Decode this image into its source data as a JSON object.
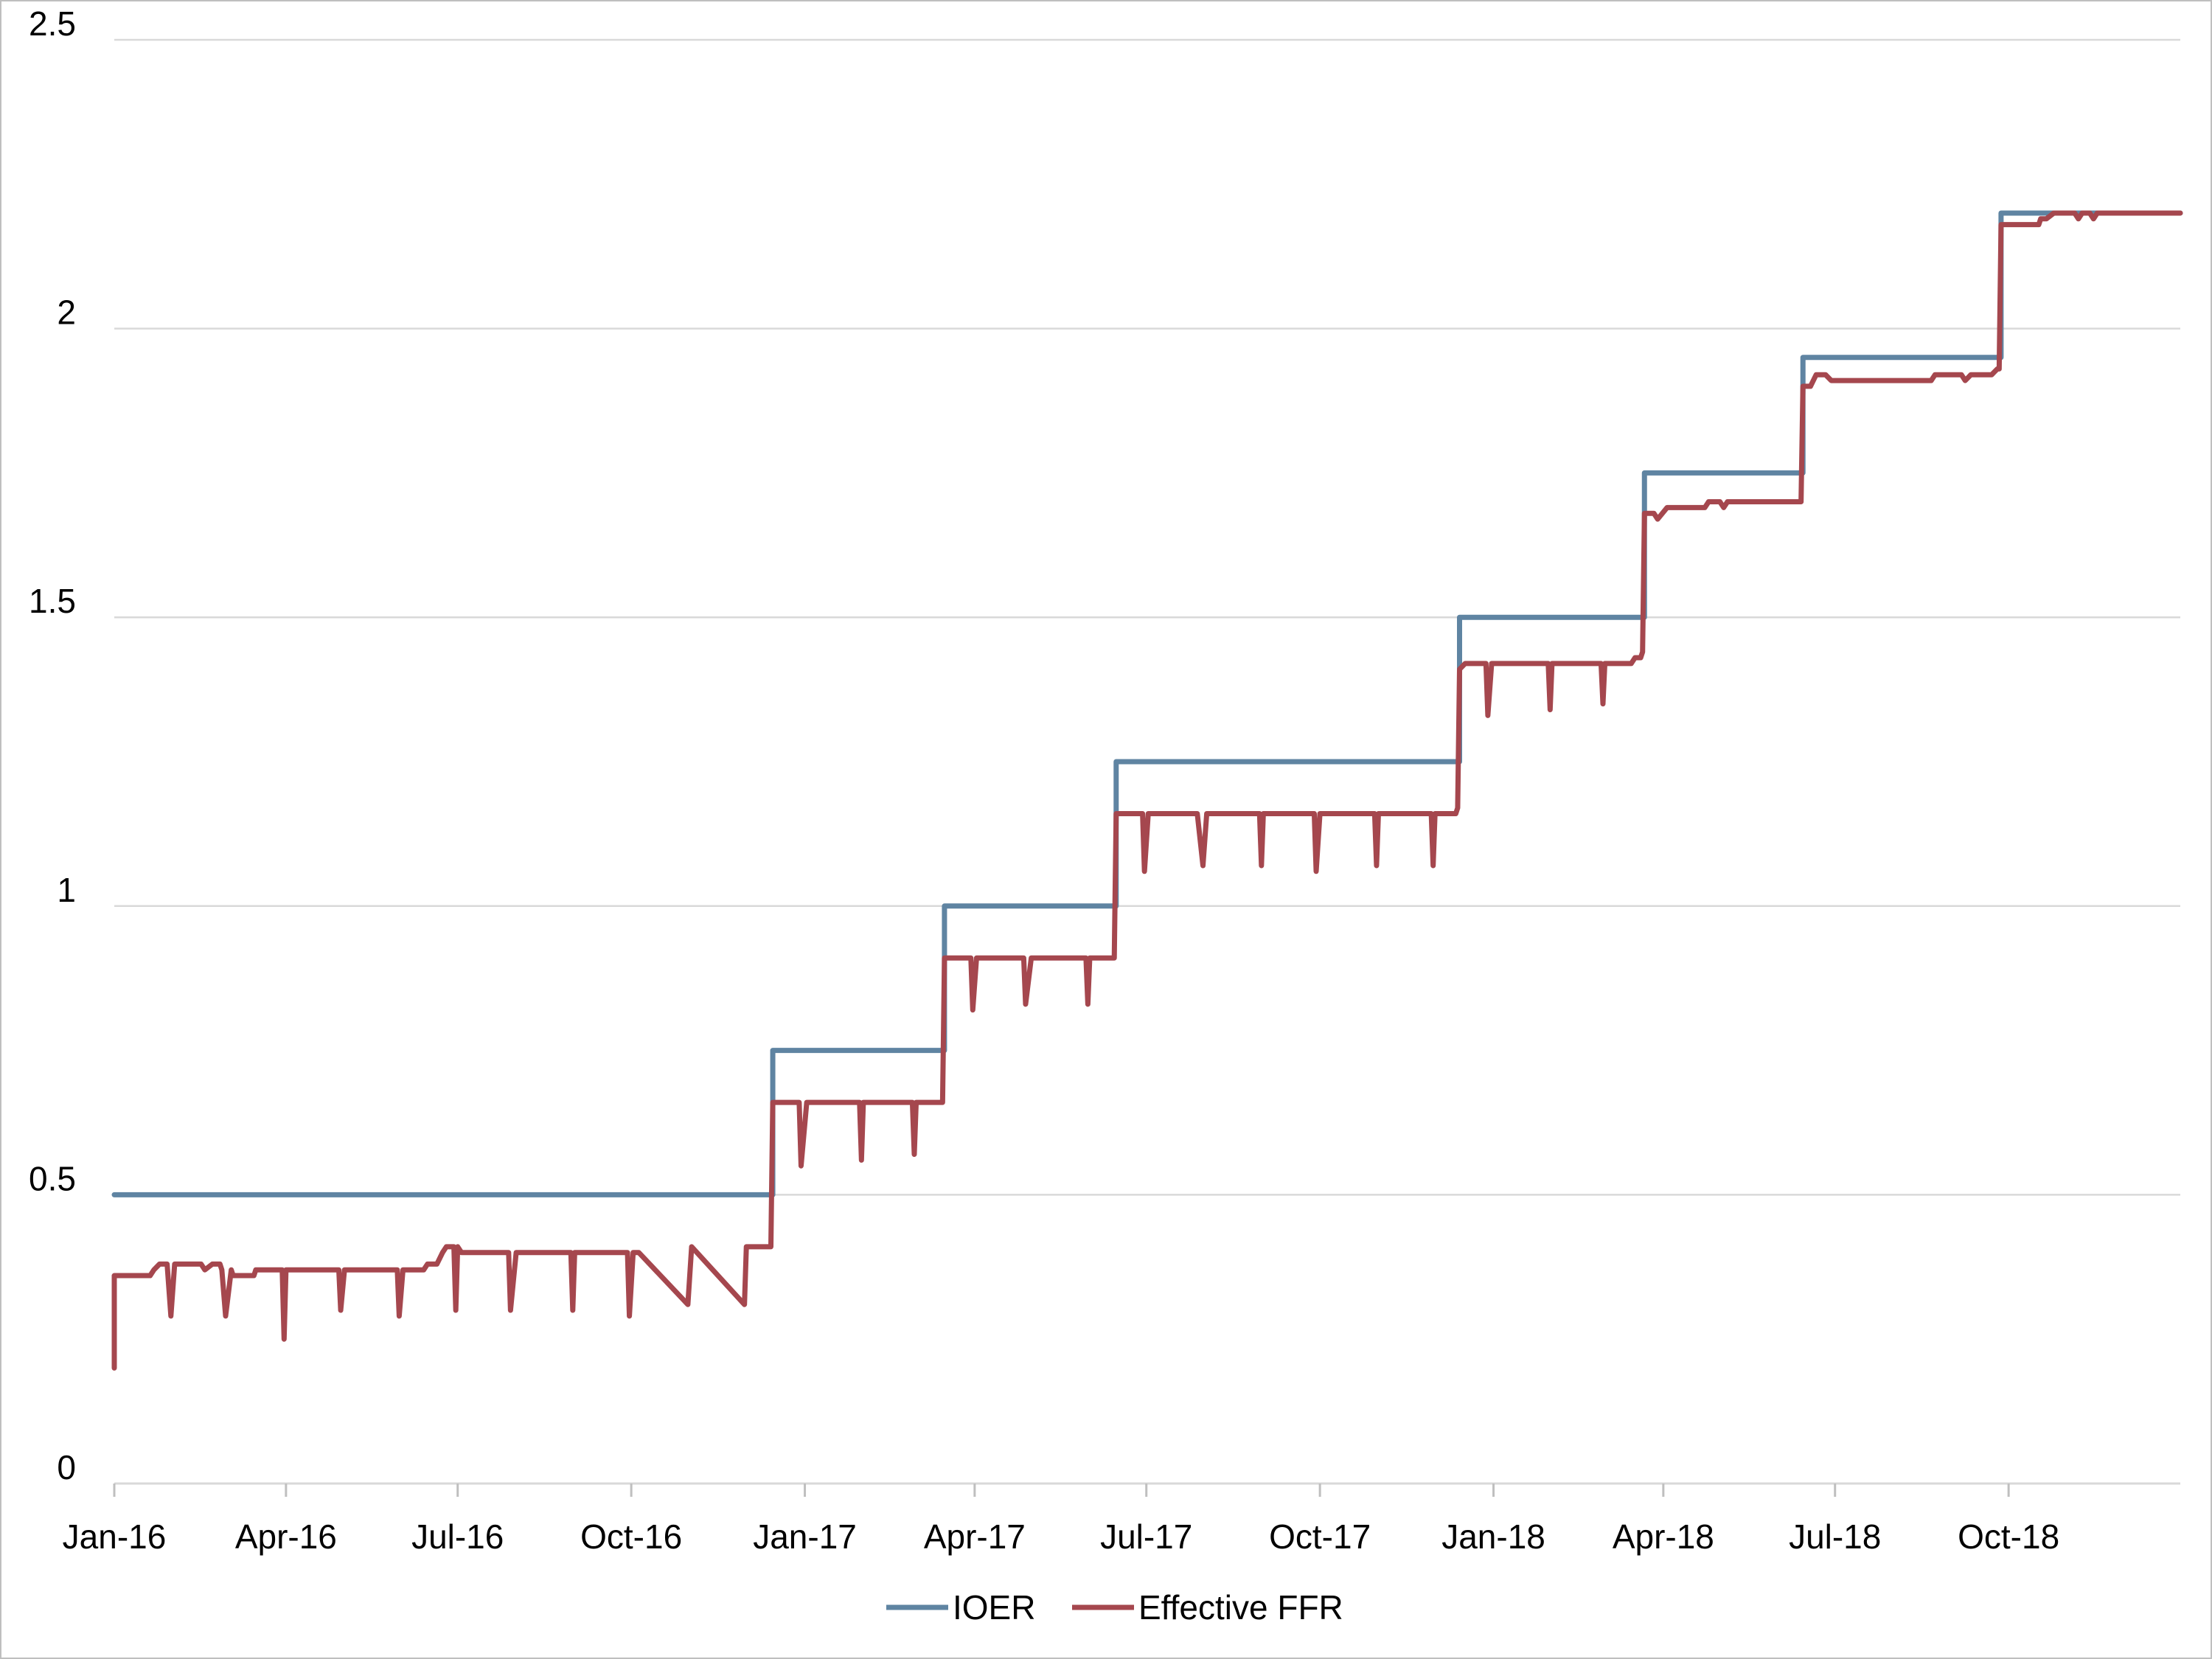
{
  "chart_data": {
    "type": "line",
    "title": "",
    "xlabel": "",
    "ylabel": "",
    "ylim": [
      0,
      2.5
    ],
    "yticks": [
      "0",
      "0.5",
      "1",
      "1.5",
      "2",
      "2.5"
    ],
    "xlim": [
      "2016-01-01",
      "2018-12-31"
    ],
    "xticks": [
      {
        "date": "2016-01-01",
        "label": "Jan-16"
      },
      {
        "date": "2016-04-01",
        "label": "Apr-16"
      },
      {
        "date": "2016-07-01",
        "label": "Jul-16"
      },
      {
        "date": "2016-10-01",
        "label": "Oct-16"
      },
      {
        "date": "2017-01-01",
        "label": "Jan-17"
      },
      {
        "date": "2017-04-01",
        "label": "Apr-17"
      },
      {
        "date": "2017-07-01",
        "label": "Jul-17"
      },
      {
        "date": "2017-10-01",
        "label": "Oct-17"
      },
      {
        "date": "2018-01-01",
        "label": "Jan-18"
      },
      {
        "date": "2018-04-01",
        "label": "Apr-18"
      },
      {
        "date": "2018-07-01",
        "label": "Jul-18"
      },
      {
        "date": "2018-10-01",
        "label": "Oct-18"
      }
    ],
    "grid": true,
    "legend_position": "bottom",
    "series": [
      {
        "name": "IOER",
        "color": "#5f84a2",
        "points": [
          [
            "2016-01-01",
            0.5
          ],
          [
            "2016-12-15",
            0.5
          ],
          [
            "2016-12-15",
            0.75
          ],
          [
            "2017-03-16",
            0.75
          ],
          [
            "2017-03-16",
            1.0
          ],
          [
            "2017-06-15",
            1.0
          ],
          [
            "2017-06-15",
            1.25
          ],
          [
            "2017-12-14",
            1.25
          ],
          [
            "2017-12-14",
            1.5
          ],
          [
            "2018-03-22",
            1.5
          ],
          [
            "2018-03-22",
            1.75
          ],
          [
            "2018-06-14",
            1.75
          ],
          [
            "2018-06-14",
            1.95
          ],
          [
            "2018-09-27",
            1.95
          ],
          [
            "2018-09-27",
            2.2
          ],
          [
            "2018-12-31",
            2.2
          ]
        ]
      },
      {
        "name": "Effective FFR",
        "color": "#a5474e",
        "points": [
          [
            "2016-01-01",
            0.2
          ],
          [
            "2016-01-01",
            0.36
          ],
          [
            "2016-01-20",
            0.36
          ],
          [
            "2016-01-22",
            0.37
          ],
          [
            "2016-01-25",
            0.38
          ],
          [
            "2016-01-29",
            0.38
          ],
          [
            "2016-01-31",
            0.29
          ],
          [
            "2016-02-02",
            0.38
          ],
          [
            "2016-02-16",
            0.38
          ],
          [
            "2016-02-18",
            0.37
          ],
          [
            "2016-02-22",
            0.38
          ],
          [
            "2016-02-26",
            0.38
          ],
          [
            "2016-02-27",
            0.37
          ],
          [
            "2016-02-29",
            0.29
          ],
          [
            "2016-03-03",
            0.37
          ],
          [
            "2016-03-04",
            0.36
          ],
          [
            "2016-03-15",
            0.36
          ],
          [
            "2016-03-16",
            0.37
          ],
          [
            "2016-03-30",
            0.37
          ],
          [
            "2016-03-31",
            0.25
          ],
          [
            "2016-04-01",
            0.37
          ],
          [
            "2016-04-29",
            0.37
          ],
          [
            "2016-04-30",
            0.3
          ],
          [
            "2016-05-02",
            0.37
          ],
          [
            "2016-05-30",
            0.37
          ],
          [
            "2016-05-31",
            0.29
          ],
          [
            "2016-06-02",
            0.37
          ],
          [
            "2016-06-13",
            0.37
          ],
          [
            "2016-06-15",
            0.38
          ],
          [
            "2016-06-20",
            0.38
          ],
          [
            "2016-06-23",
            0.4
          ],
          [
            "2016-06-25",
            0.41
          ],
          [
            "2016-06-29",
            0.41
          ],
          [
            "2016-06-30",
            0.3
          ],
          [
            "2016-07-01",
            0.41
          ],
          [
            "2016-07-03",
            0.4
          ],
          [
            "2016-07-28",
            0.4
          ],
          [
            "2016-07-29",
            0.3
          ],
          [
            "2016-08-01",
            0.4
          ],
          [
            "2016-08-30",
            0.4
          ],
          [
            "2016-08-31",
            0.3
          ],
          [
            "2016-09-01",
            0.4
          ],
          [
            "2016-09-29",
            0.4
          ],
          [
            "2016-09-30",
            0.29
          ],
          [
            "2016-10-02",
            0.4
          ],
          [
            "2016-10-05",
            0.4
          ],
          [
            "2016-10-31",
            0.31
          ],
          [
            "2016-11-02",
            0.41
          ],
          [
            "2016-11-30",
            0.31
          ],
          [
            "2016-12-01",
            0.41
          ],
          [
            "2016-12-14",
            0.41
          ],
          [
            "2016-12-15",
            0.66
          ],
          [
            "2016-12-29",
            0.66
          ],
          [
            "2016-12-30",
            0.55
          ],
          [
            "2017-01-02",
            0.66
          ],
          [
            "2017-01-30",
            0.66
          ],
          [
            "2017-01-31",
            0.56
          ],
          [
            "2017-02-01",
            0.66
          ],
          [
            "2017-02-27",
            0.66
          ],
          [
            "2017-02-28",
            0.57
          ],
          [
            "2017-03-01",
            0.66
          ],
          [
            "2017-03-15",
            0.66
          ],
          [
            "2017-03-16",
            0.91
          ],
          [
            "2017-03-30",
            0.91
          ],
          [
            "2017-03-31",
            0.82
          ],
          [
            "2017-04-02",
            0.91
          ],
          [
            "2017-04-27",
            0.91
          ],
          [
            "2017-04-28",
            0.83
          ],
          [
            "2017-05-01",
            0.91
          ],
          [
            "2017-05-30",
            0.91
          ],
          [
            "2017-05-31",
            0.83
          ],
          [
            "2017-06-01",
            0.91
          ],
          [
            "2017-06-14",
            0.91
          ],
          [
            "2017-06-15",
            1.16
          ],
          [
            "2017-06-29",
            1.16
          ],
          [
            "2017-06-30",
            1.06
          ],
          [
            "2017-07-02",
            1.16
          ],
          [
            "2017-07-28",
            1.16
          ],
          [
            "2017-07-31",
            1.07
          ],
          [
            "2017-08-02",
            1.16
          ],
          [
            "2017-08-30",
            1.16
          ],
          [
            "2017-08-31",
            1.07
          ],
          [
            "2017-09-01",
            1.16
          ],
          [
            "2017-09-28",
            1.16
          ],
          [
            "2017-09-29",
            1.06
          ],
          [
            "2017-10-01",
            1.16
          ],
          [
            "2017-10-30",
            1.16
          ],
          [
            "2017-10-31",
            1.07
          ],
          [
            "2017-11-01",
            1.16
          ],
          [
            "2017-11-29",
            1.16
          ],
          [
            "2017-11-30",
            1.07
          ],
          [
            "2017-12-01",
            1.16
          ],
          [
            "2017-12-12",
            1.16
          ],
          [
            "2017-12-13",
            1.17
          ],
          [
            "2017-12-14",
            1.41
          ],
          [
            "2017-12-17",
            1.42
          ],
          [
            "2017-12-28",
            1.42
          ],
          [
            "2017-12-29",
            1.33
          ],
          [
            "2017-12-31",
            1.42
          ],
          [
            "2018-01-30",
            1.42
          ],
          [
            "2018-01-31",
            1.34
          ],
          [
            "2018-02-01",
            1.42
          ],
          [
            "2018-02-27",
            1.42
          ],
          [
            "2018-02-28",
            1.35
          ],
          [
            "2018-03-01",
            1.42
          ],
          [
            "2018-03-15",
            1.42
          ],
          [
            "2018-03-17",
            1.43
          ],
          [
            "2018-03-20",
            1.43
          ],
          [
            "2018-03-21",
            1.44
          ],
          [
            "2018-03-22",
            1.68
          ],
          [
            "2018-03-27",
            1.68
          ],
          [
            "2018-03-29",
            1.67
          ],
          [
            "2018-04-03",
            1.69
          ],
          [
            "2018-04-23",
            1.69
          ],
          [
            "2018-04-25",
            1.7
          ],
          [
            "2018-05-01",
            1.7
          ],
          [
            "2018-05-03",
            1.69
          ],
          [
            "2018-05-05",
            1.7
          ],
          [
            "2018-06-13",
            1.7
          ],
          [
            "2018-06-14",
            1.9
          ],
          [
            "2018-06-18",
            1.9
          ],
          [
            "2018-06-21",
            1.92
          ],
          [
            "2018-06-26",
            1.92
          ],
          [
            "2018-06-29",
            1.91
          ],
          [
            "2018-08-21",
            1.91
          ],
          [
            "2018-08-23",
            1.92
          ],
          [
            "2018-09-06",
            1.92
          ],
          [
            "2018-09-08",
            1.91
          ],
          [
            "2018-09-11",
            1.92
          ],
          [
            "2018-09-22",
            1.92
          ],
          [
            "2018-09-25",
            1.93
          ],
          [
            "2018-09-26",
            1.93
          ],
          [
            "2018-09-27",
            2.18
          ],
          [
            "2018-10-17",
            2.18
          ],
          [
            "2018-10-18",
            2.19
          ],
          [
            "2018-10-21",
            2.19
          ],
          [
            "2018-10-25",
            2.2
          ],
          [
            "2018-11-05",
            2.2
          ],
          [
            "2018-11-07",
            2.19
          ],
          [
            "2018-11-09",
            2.2
          ],
          [
            "2018-11-13",
            2.2
          ],
          [
            "2018-11-15",
            2.19
          ],
          [
            "2018-11-17",
            2.2
          ],
          [
            "2018-12-31",
            2.2
          ]
        ]
      }
    ]
  }
}
